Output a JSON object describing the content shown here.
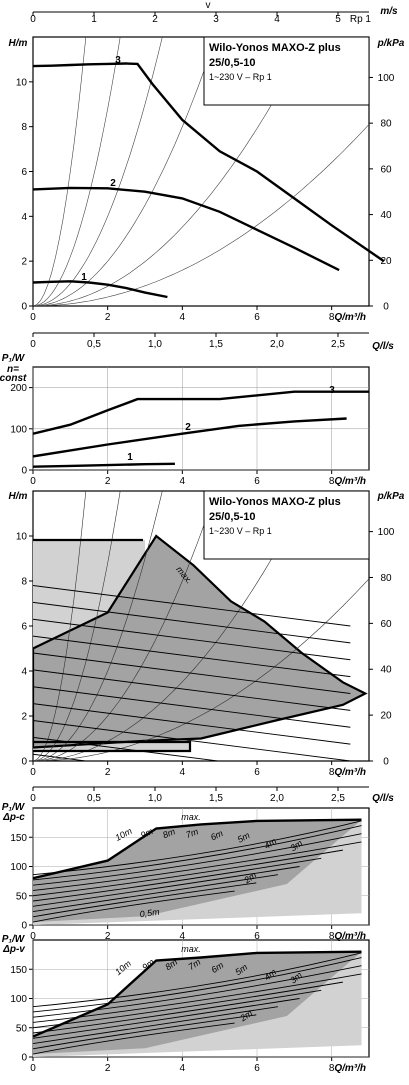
{
  "title": "Wilo-Yonos MAXO-Z plus",
  "model": "25/0,5-10",
  "supply": "1~230 V – Rp 1",
  "colors": {
    "ink": "#000000",
    "light_fill": "#d2d2d2",
    "dark_fill": "#a3a3a3"
  },
  "chart_data": [
    {
      "type": "line",
      "id": "hq",
      "xlabel": "Q/m³/h",
      "ylabel": "H/m",
      "y2label": "p/kPa",
      "xlim": [
        0,
        9
      ],
      "ylim": [
        0,
        12
      ],
      "xticks": [
        "0",
        "2",
        "4",
        "6",
        "8"
      ],
      "yticks": [
        "0",
        "2",
        "4",
        "6",
        "8",
        "10"
      ],
      "y2ticks": [
        "0",
        "20",
        "40",
        "60",
        "80",
        "100"
      ],
      "top_axis_label": "v",
      "top_axis_unit": "m/s",
      "top_axis_sub": "Rp 1",
      "top_ticks": [
        "0",
        "1",
        "2",
        "3",
        "4",
        "5"
      ],
      "series": [
        {
          "name": "3",
          "x": [
            0,
            0.5,
            1,
            1.5,
            2,
            2.5,
            2.8,
            3.2,
            4,
            5,
            6,
            7,
            8,
            9.4
          ],
          "y": [
            10.7,
            10.72,
            10.75,
            10.78,
            10.8,
            10.82,
            10.8,
            9.9,
            8.3,
            6.9,
            6.0,
            4.8,
            3.6,
            2.0
          ]
        },
        {
          "name": "2",
          "x": [
            0,
            1,
            2,
            3,
            4,
            5,
            6,
            7,
            8.2
          ],
          "y": [
            5.2,
            5.27,
            5.25,
            5.1,
            4.8,
            4.2,
            3.4,
            2.6,
            1.6
          ]
        },
        {
          "name": "1",
          "x": [
            0,
            0.5,
            1,
            1.5,
            2,
            2.5,
            3,
            3.6
          ],
          "y": [
            1.05,
            1.08,
            1.1,
            1.05,
            0.95,
            0.8,
            0.6,
            0.4
          ]
        }
      ]
    },
    {
      "type": "line",
      "id": "p1",
      "ylabel": "P₁/W",
      "ylabel2": "n=",
      "ylabel3": "const",
      "xlabel": "Q/m³/h",
      "xlim": [
        0,
        9
      ],
      "ylim": [
        0,
        250
      ],
      "xticks": [
        "0",
        "2",
        "4",
        "6",
        "8"
      ],
      "yticks": [
        "0",
        "100",
        "200"
      ],
      "top_axis_label": "Q/l/s",
      "top_ticks": [
        "0",
        "0,5",
        "1,0",
        "1,5",
        "2,0",
        "2,5"
      ],
      "series": [
        {
          "name": "3",
          "x": [
            0,
            1,
            2,
            2.8,
            5,
            7,
            9.8
          ],
          "y": [
            88,
            110,
            145,
            172,
            172,
            190,
            190
          ]
        },
        {
          "name": "2",
          "x": [
            0,
            2,
            4,
            5.5,
            7,
            8.4
          ],
          "y": [
            33,
            62,
            88,
            107,
            118,
            125
          ]
        },
        {
          "name": "1",
          "x": [
            0,
            1,
            2,
            3,
            3.8
          ],
          "y": [
            8,
            10,
            12,
            14,
            15
          ]
        }
      ]
    },
    {
      "type": "area",
      "id": "hq_map",
      "xlabel": "Q/m³/h",
      "ylabel": "H/m",
      "y2label": "p/kPa",
      "xlim": [
        0,
        9
      ],
      "ylim": [
        0,
        12
      ],
      "xticks": [
        "0",
        "2",
        "4",
        "6",
        "8"
      ],
      "yticks": [
        "0",
        "2",
        "4",
        "6",
        "8",
        "10"
      ],
      "y2ticks": [
        "0",
        "20",
        "40",
        "60",
        "80",
        "100"
      ],
      "annotation": "max.",
      "max_curve": {
        "x": [
          0,
          2,
          3.3,
          4.3,
          5.3,
          6.2,
          7.2,
          8.3,
          8.9,
          8.3,
          6.5,
          5,
          4.5,
          3,
          0
        ],
        "y": [
          5,
          6.6,
          10,
          8.7,
          7.1,
          6.2,
          4.8,
          3.5,
          3,
          2.5,
          1.8,
          1.2,
          1,
          0.9,
          0.6
        ]
      },
      "light_region": {
        "x": [
          0,
          3.3,
          2.2,
          0,
          0,
          4.5,
          4.5,
          0
        ],
        "y": [
          10,
          10,
          8,
          5,
          0.5,
          0.5,
          1,
          1
        ]
      }
    },
    {
      "type": "area",
      "id": "p1_dpc",
      "ylabel": "P₁/W",
      "ylabel2": "Δp-c",
      "xlabel": "Q/m³/h",
      "xlim": [
        0,
        9
      ],
      "ylim": [
        0,
        200
      ],
      "xticks": [
        "0",
        "2",
        "4",
        "6",
        "8"
      ],
      "yticks": [
        "0",
        "50",
        "100",
        "150"
      ],
      "top_axis_label": "Q/l/s",
      "top_ticks": [
        "0",
        "0,5",
        "1,0",
        "1,5",
        "2,0",
        "2,5"
      ],
      "annotation": "max.",
      "curve_labels": [
        "10m",
        "9m",
        "8m",
        "7m",
        "6m",
        "5m",
        "4m",
        "3m",
        "2m",
        "0,5m"
      ],
      "max_curve": {
        "x": [
          0,
          2,
          3.3,
          4.5,
          6,
          8.8
        ],
        "y": [
          80,
          110,
          165,
          172,
          178,
          180
        ]
      },
      "light_region": {
        "x": [
          0,
          6,
          7.2,
          8.8
        ],
        "y": [
          20,
          35,
          65,
          180
        ]
      }
    },
    {
      "type": "area",
      "id": "p1_dpv",
      "ylabel": "P₁/W",
      "ylabel2": "Δp-v",
      "xlabel": "Q/m³/h",
      "xlim": [
        0,
        9
      ],
      "ylim": [
        0,
        200
      ],
      "xticks": [
        "0",
        "2",
        "4",
        "6",
        "8"
      ],
      "yticks": [
        "0",
        "50",
        "100",
        "150"
      ],
      "annotation": "max.",
      "curve_labels": [
        "10m",
        "9m",
        "8m",
        "7m",
        "6m",
        "5m",
        "4m",
        "3m",
        "2m"
      ],
      "max_curve": {
        "x": [
          0,
          2,
          3.3,
          4.5,
          6,
          8.8
        ],
        "y": [
          35,
          90,
          165,
          170,
          178,
          180
        ]
      },
      "light_region": {
        "x": [
          0,
          6.5,
          8.8
        ],
        "y": [
          20,
          55,
          180
        ]
      }
    }
  ]
}
